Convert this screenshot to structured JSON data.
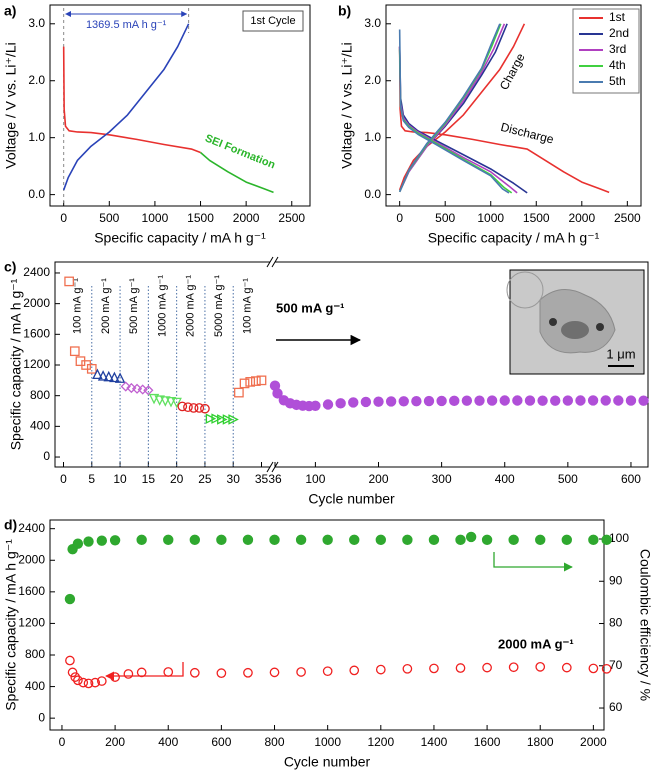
{
  "chart_data": [
    {
      "type": "line",
      "panel_label": "a)",
      "xlabel": "Specific capacity / mA h g⁻¹",
      "ylabel": "Voltage / V vs. Li⁺/Li",
      "xlim": [
        -150,
        2700
      ],
      "ylim": [
        -0.2,
        3.33
      ],
      "xticks": [
        0,
        500,
        1000,
        1500,
        2000,
        2500
      ],
      "yticks": [
        {
          "value": 0,
          "label": "0.0"
        },
        {
          "value": 1,
          "label": "1.0"
        },
        {
          "value": 2,
          "label": "2.0"
        },
        {
          "value": 3,
          "label": "3.0"
        }
      ],
      "series": [
        {
          "color": "#e8312f",
          "x": [
            0,
            5,
            20,
            60,
            150,
            300,
            500,
            800,
            1100,
            1400,
            1500
          ],
          "values": [
            2.6,
            1.5,
            1.2,
            1.12,
            1.1,
            1.09,
            1.05,
            0.97,
            0.88,
            0.8,
            0.74
          ]
        },
        {
          "color": "#2bb52b",
          "x": [
            1500,
            1600,
            1800,
            2000,
            2200,
            2300
          ],
          "values": [
            0.74,
            0.6,
            0.4,
            0.22,
            0.1,
            0.04
          ]
        },
        {
          "color": "#2a43b8",
          "x": [
            0,
            50,
            150,
            300,
            500,
            700,
            900,
            1100,
            1250,
            1369.5
          ],
          "values": [
            0.08,
            0.3,
            0.6,
            0.85,
            1.1,
            1.4,
            1.8,
            2.2,
            2.6,
            3.0
          ]
        }
      ],
      "annotations": [
        "1369.5 mA h g⁻¹",
        "1st Cycle",
        "SEI Formation"
      ]
    },
    {
      "type": "line",
      "panel_label": "b)",
      "xlabel": "Specific capacity / mA h g⁻¹",
      "ylabel": "Voltage / V vs. Li⁺/Li",
      "xlim": [
        -150,
        2650
      ],
      "ylim": [
        -0.2,
        3.33
      ],
      "xticks": [
        0,
        500,
        1000,
        1500,
        2000,
        2500
      ],
      "yticks": [
        {
          "value": 0,
          "label": "0.0"
        },
        {
          "value": 1,
          "label": "1.0"
        },
        {
          "value": 2,
          "label": "2.0"
        },
        {
          "value": 3,
          "label": "3.0"
        }
      ],
      "legend": "upper right",
      "series": [
        {
          "name": "1st",
          "color": "#e8312f",
          "x": [
            0,
            5,
            20,
            60,
            150,
            300,
            500,
            800,
            1100,
            1400,
            1600,
            1800,
            2000,
            2200,
            2300,
            null,
            0,
            50,
            150,
            300,
            500,
            700,
            900,
            1100,
            1250,
            1369.5
          ],
          "values": [
            2.6,
            1.5,
            1.2,
            1.12,
            1.1,
            1.09,
            1.05,
            0.97,
            0.88,
            0.8,
            0.6,
            0.4,
            0.22,
            0.1,
            0.04,
            null,
            0.08,
            0.3,
            0.6,
            0.85,
            1.1,
            1.4,
            1.8,
            2.2,
            2.6,
            3.0
          ]
        },
        {
          "name": "2nd",
          "color": "#283593",
          "x": [
            0,
            10,
            40,
            100,
            200,
            400,
            700,
            1000,
            1250,
            1400,
            null,
            0,
            100,
            300,
            500,
            700,
            900,
            1050,
            1180
          ],
          "values": [
            2.6,
            1.7,
            1.4,
            1.25,
            1.12,
            0.95,
            0.7,
            0.45,
            0.2,
            0.03,
            null,
            0.05,
            0.4,
            0.85,
            1.2,
            1.6,
            2.1,
            2.5,
            3.0
          ]
        },
        {
          "name": "3rd",
          "color": "#b040c0",
          "x": [
            0,
            10,
            40,
            100,
            200,
            400,
            700,
            1000,
            1200,
            1290,
            null,
            0,
            100,
            300,
            500,
            700,
            900,
            1030,
            1150
          ],
          "values": [
            2.6,
            1.6,
            1.35,
            1.22,
            1.1,
            0.92,
            0.65,
            0.4,
            0.15,
            0.03,
            null,
            0.05,
            0.4,
            0.85,
            1.22,
            1.65,
            2.15,
            2.55,
            3.0
          ]
        },
        {
          "name": "4th",
          "color": "#40d040",
          "x": [
            0,
            10,
            40,
            100,
            200,
            400,
            700,
            1000,
            1150,
            1230,
            null,
            0,
            100,
            300,
            500,
            700,
            900,
            1010,
            1110
          ],
          "values": [
            2.55,
            1.55,
            1.32,
            1.2,
            1.08,
            0.9,
            0.62,
            0.35,
            0.12,
            0.03,
            null,
            0.05,
            0.42,
            0.88,
            1.25,
            1.7,
            2.2,
            2.6,
            3.0
          ]
        },
        {
          "name": "5th",
          "color": "#4a7bb0",
          "x": [
            0,
            10,
            40,
            100,
            200,
            400,
            700,
            1000,
            1130,
            1200,
            null,
            0,
            100,
            300,
            500,
            700,
            900,
            1000,
            1100
          ],
          "values": [
            2.9,
            1.55,
            1.3,
            1.18,
            1.06,
            0.88,
            0.6,
            0.33,
            0.1,
            0.03,
            null,
            0.05,
            0.43,
            0.9,
            1.27,
            1.72,
            2.22,
            2.62,
            3.0
          ]
        }
      ],
      "annotations": [
        "Charge",
        "Discharge"
      ]
    },
    {
      "type": "scatter",
      "panel_label": "c)",
      "xlabel": "Cycle number",
      "ylabel": "Specific capacity / mA h g⁻¹",
      "xlim": [
        -1.5,
        36.5
      ],
      "x2lim": [
        36,
        627
      ],
      "ylim": [
        -130,
        2543
      ],
      "xticks": [
        0,
        5,
        10,
        15,
        20,
        25,
        30,
        35
      ],
      "x2ticks": [
        36,
        100,
        200,
        300,
        400,
        500,
        600
      ],
      "yticks": [
        0,
        400,
        800,
        1200,
        1600,
        2000,
        2400
      ],
      "rate_labels": [
        "100 mA g⁻¹",
        "200 mA g⁻¹",
        "500 mA g⁻¹",
        "1000 mA g⁻¹",
        "2000 mA g⁻¹",
        "5000 mA g⁻¹",
        "100 mA g⁻¹"
      ],
      "annotations": [
        "500 mA g⁻¹",
        "1 μm"
      ],
      "series": [
        {
          "color": "#f07050",
          "marker": "square",
          "x": [
            1,
            2,
            3,
            4,
            5
          ],
          "values": [
            2290,
            1380,
            1250,
            1200,
            1150
          ]
        },
        {
          "color": "#2040a0",
          "marker": "triangle",
          "x": [
            6,
            7,
            8,
            9,
            10
          ],
          "values": [
            1080,
            1060,
            1050,
            1040,
            1030
          ]
        },
        {
          "color": "#c060d0",
          "marker": "diamond",
          "x": [
            11,
            12,
            13,
            14,
            15
          ],
          "values": [
            920,
            900,
            890,
            880,
            870
          ]
        },
        {
          "color": "#60e060",
          "marker": "triangle-down",
          "x": [
            16,
            17,
            18,
            19,
            20
          ],
          "values": [
            760,
            740,
            730,
            720,
            710
          ]
        },
        {
          "color": "#e02020",
          "marker": "circle",
          "x": [
            21,
            22,
            23,
            24,
            25
          ],
          "values": [
            660,
            650,
            640,
            640,
            630
          ]
        },
        {
          "color": "#30d030",
          "marker": "triangle-right",
          "x": [
            26,
            27,
            28,
            29,
            30
          ],
          "values": [
            500,
            500,
            490,
            490,
            490
          ]
        },
        {
          "color": "#f07050",
          "marker": "square",
          "x": [
            31,
            32,
            33,
            34,
            35
          ],
          "values": [
            840,
            960,
            980,
            990,
            1000
          ]
        },
        {
          "color": "#b04fd8",
          "marker": "dot",
          "axis": "x2",
          "x": [
            36,
            40,
            50,
            60,
            70,
            80,
            90,
            100,
            120,
            140,
            160,
            180,
            200,
            220,
            240,
            260,
            280,
            300,
            320,
            340,
            360,
            380,
            400,
            420,
            440,
            460,
            480,
            500,
            520,
            540,
            560,
            580,
            600,
            620
          ],
          "values": [
            930,
            830,
            740,
            700,
            680,
            670,
            665,
            668,
            685,
            700,
            712,
            718,
            722,
            725,
            727,
            728,
            730,
            732,
            733,
            735,
            735,
            736,
            737,
            737,
            736,
            735,
            735,
            736,
            737,
            738,
            738,
            737,
            736,
            735
          ]
        }
      ]
    },
    {
      "type": "dual",
      "panel_label": "d)",
      "xlabel": "Cycle number",
      "ylabel": "Specific capacity / mA h g⁻¹",
      "y2label": "Coulombic efficiency / %",
      "xlim": [
        -45,
        2040
      ],
      "ylim": [
        -150,
        2510
      ],
      "y2lim": [
        54.8,
        104.5
      ],
      "xticks": [
        0,
        200,
        400,
        600,
        800,
        1000,
        1200,
        1400,
        1600,
        1800,
        2000
      ],
      "yticks": [
        0,
        400,
        800,
        1200,
        1600,
        2000,
        2400
      ],
      "y2ticks": [
        60,
        70,
        80,
        90,
        100
      ],
      "annotations": [
        "2000 mA g⁻¹"
      ],
      "series": [
        {
          "color": "#f02020",
          "marker": "open-circle",
          "x": [
            30,
            40,
            50,
            60,
            80,
            100,
            125,
            150,
            200,
            250,
            300,
            400,
            500,
            600,
            700,
            800,
            900,
            1000,
            1100,
            1200,
            1300,
            1400,
            1500,
            1600,
            1700,
            1800,
            1900,
            2000,
            2050
          ],
          "values": [
            730,
            580,
            520,
            480,
            450,
            440,
            450,
            470,
            520,
            560,
            580,
            585,
            575,
            570,
            575,
            580,
            585,
            595,
            605,
            615,
            625,
            630,
            635,
            640,
            645,
            650,
            640,
            630,
            625
          ]
        },
        {
          "color": "#2fa82f",
          "marker": "dot",
          "axis": "y2",
          "x": [
            30,
            40,
            60,
            100,
            150,
            200,
            300,
            400,
            500,
            600,
            700,
            800,
            900,
            1000,
            1100,
            1200,
            1300,
            1400,
            1500,
            1540,
            1600,
            1700,
            1800,
            1900,
            2000,
            2050
          ],
          "values": [
            85.8,
            97.6,
            98.9,
            99.4,
            99.6,
            99.7,
            99.8,
            99.8,
            99.8,
            99.8,
            99.8,
            99.8,
            99.8,
            99.8,
            99.8,
            99.8,
            99.8,
            99.8,
            99.8,
            100.5,
            99.8,
            99.8,
            99.8,
            99.8,
            99.8,
            99.8
          ]
        }
      ]
    }
  ]
}
